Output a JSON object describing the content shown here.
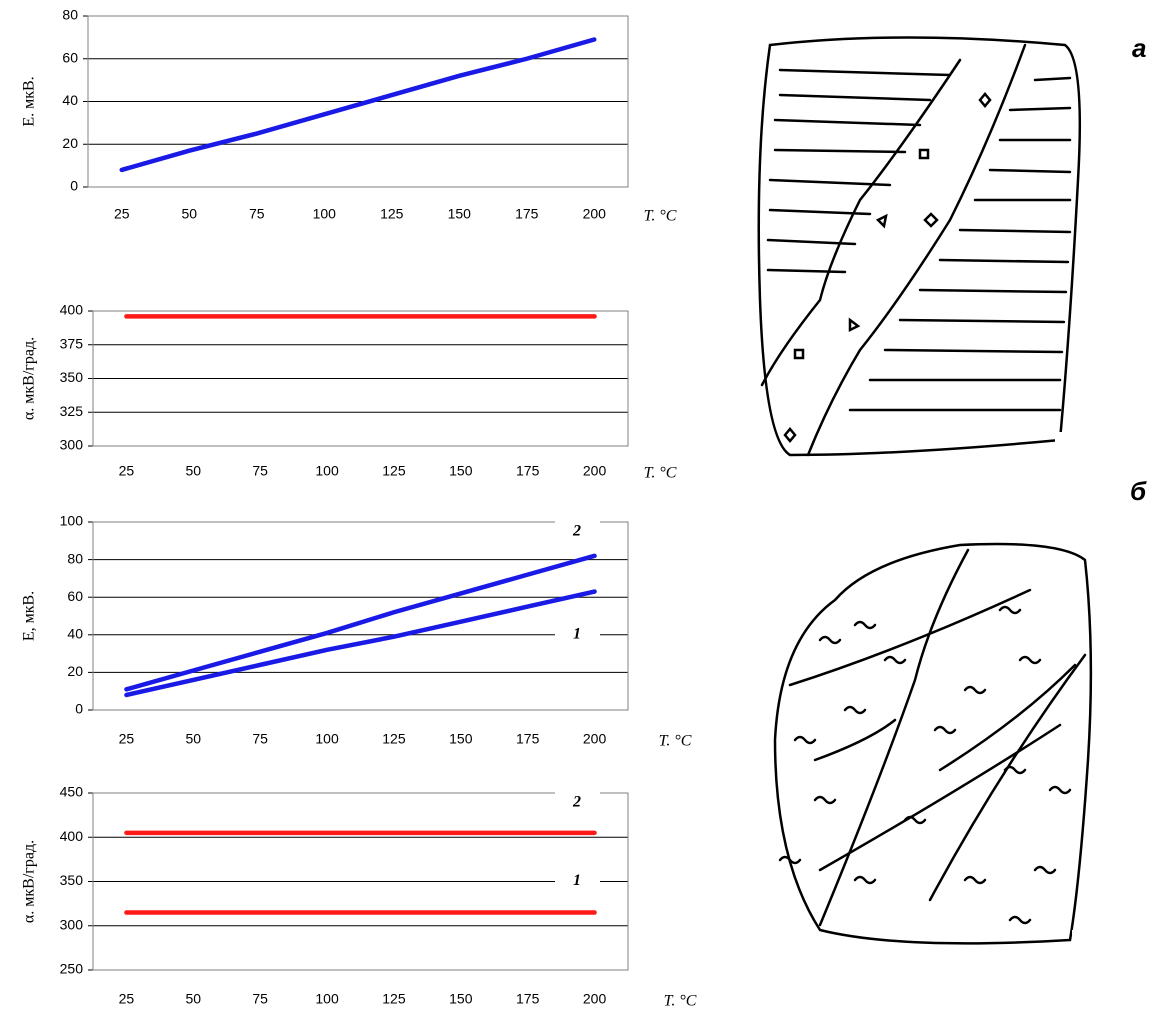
{
  "chart_data": [
    {
      "type": "line",
      "ylabel": "E. мкВ.",
      "xlabel": "T. °C",
      "x": [
        25,
        50,
        75,
        100,
        125,
        150,
        175,
        200
      ],
      "xlim": [
        12.5,
        212.5
      ],
      "xticks": [
        25,
        50,
        75,
        100,
        125,
        150,
        175,
        200
      ],
      "series": [
        {
          "color": "#1a1ae6",
          "values": [
            8,
            17,
            25,
            34,
            43,
            52,
            60,
            69
          ]
        }
      ],
      "ylim": [
        0,
        80
      ],
      "yticks": [
        0,
        20,
        40,
        60,
        80
      ],
      "grid": true
    },
    {
      "type": "line",
      "ylabel": "α. мкВ/град.",
      "xlabel": "T. °C",
      "x": [
        25,
        50,
        75,
        100,
        125,
        150,
        175,
        200
      ],
      "xlim": [
        12.5,
        212.5
      ],
      "xticks": [
        25,
        50,
        75,
        100,
        125,
        150,
        175,
        200
      ],
      "series": [
        {
          "color": "#ff1a1a",
          "values": [
            396,
            396,
            396,
            396,
            396,
            396,
            396,
            396
          ]
        }
      ],
      "ylim": [
        300,
        400
      ],
      "yticks": [
        300,
        325,
        350,
        375,
        400
      ],
      "grid": true
    },
    {
      "type": "line",
      "ylabel": "E, мкВ.",
      "xlabel": "T. °C",
      "x": [
        25,
        50,
        75,
        100,
        125,
        150,
        175,
        200
      ],
      "xlim": [
        12.5,
        212.5
      ],
      "xticks": [
        25,
        50,
        75,
        100,
        125,
        150,
        175,
        200
      ],
      "series": [
        {
          "name": "2",
          "color": "#1a1ae6",
          "values": [
            11,
            21,
            31,
            41,
            52,
            62,
            72,
            82
          ]
        },
        {
          "name": "1",
          "color": "#1a1ae6",
          "values": [
            8,
            16,
            24,
            32,
            39,
            47,
            55,
            63
          ]
        }
      ],
      "ylim": [
        0,
        100
      ],
      "yticks": [
        0,
        20,
        40,
        60,
        80,
        100
      ],
      "grid": true
    },
    {
      "type": "line",
      "ylabel": "α. мкВ/град.",
      "xlabel": "T. °C",
      "x": [
        25,
        50,
        75,
        100,
        125,
        150,
        175,
        200
      ],
      "xlim": [
        12.5,
        212.5
      ],
      "xticks": [
        25,
        50,
        75,
        100,
        125,
        150,
        175,
        200
      ],
      "series": [
        {
          "name": "2",
          "color": "#ff1a1a",
          "values": [
            405,
            405,
            405,
            405,
            405,
            405,
            405,
            405
          ]
        },
        {
          "name": "1",
          "color": "#ff1a1a",
          "values": [
            315,
            315,
            315,
            315,
            315,
            315,
            315,
            315
          ]
        }
      ],
      "ylim": [
        250,
        450
      ],
      "yticks": [
        250,
        300,
        350,
        400,
        450
      ],
      "grid": true
    }
  ],
  "figure_labels": [
    "а",
    "б"
  ]
}
